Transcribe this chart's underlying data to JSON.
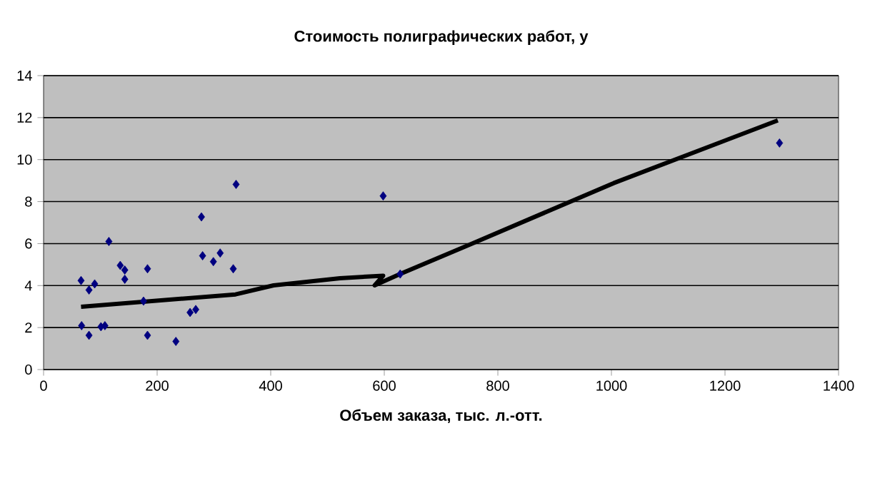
{
  "chart_data": {
    "type": "scatter",
    "title": "Стоимость полиграфических работ, у",
    "xlabel": "Объем заказа, тыс. л.-отт.",
    "xlim": [
      0,
      1400
    ],
    "xticks": [
      0,
      200,
      400,
      600,
      800,
      1000,
      1200,
      1400
    ],
    "ylim": [
      0,
      14
    ],
    "yticks": [
      0,
      2,
      4,
      6,
      8,
      10,
      12,
      14
    ],
    "grid": "y",
    "series": [
      {
        "type": "scatter",
        "color": "#000080",
        "marker": "diamond",
        "x": [
          66,
          67,
          80,
          80,
          90,
          101,
          108,
          115,
          135,
          143,
          143,
          176,
          183,
          183,
          233,
          258,
          268,
          278,
          280,
          299,
          311,
          334,
          339,
          598,
          628,
          1296
        ],
        "values": [
          4.24,
          2.09,
          3.79,
          1.63,
          4.08,
          2.04,
          2.09,
          6.1,
          4.96,
          4.74,
          4.3,
          3.26,
          4.8,
          1.63,
          1.34,
          2.72,
          2.86,
          7.27,
          5.42,
          5.14,
          5.55,
          4.8,
          8.82,
          8.27,
          4.55,
          10.79
        ]
      },
      {
        "type": "line",
        "color": "#000000",
        "marker": "none",
        "line_style": "solid",
        "x": [
          66,
          338,
          405,
          522,
          598,
          583,
          628,
          753,
          1004,
          1293
        ],
        "values": [
          2.99,
          3.58,
          4.01,
          4.35,
          4.47,
          4.01,
          4.55,
          5.98,
          8.88,
          11.87
        ]
      }
    ]
  }
}
